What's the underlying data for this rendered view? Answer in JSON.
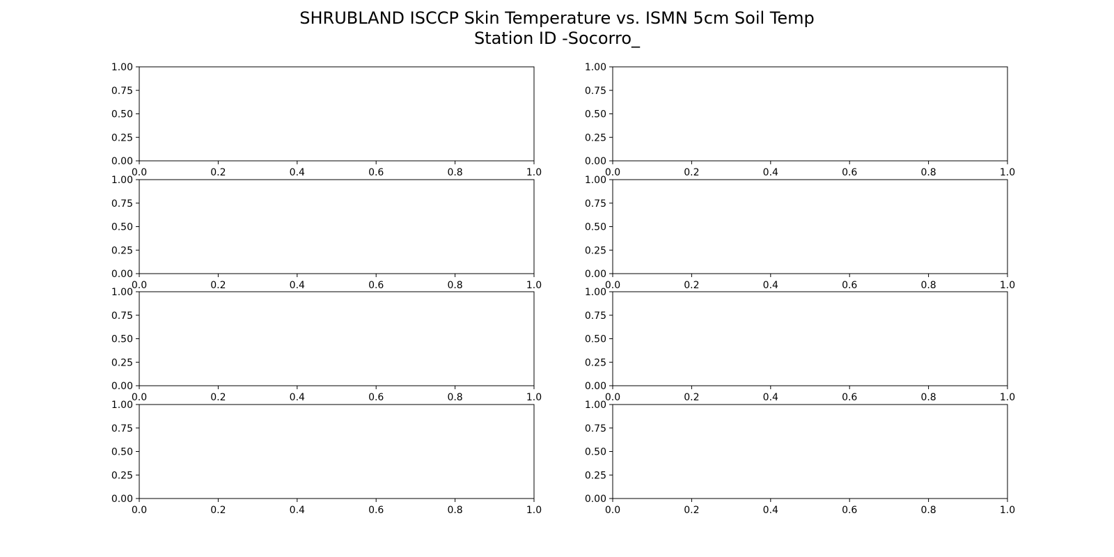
{
  "figure": {
    "title_line_1": "SHRUBLAND ISCCP Skin Temperature vs. ISMN 5cm Soil Temp",
    "title_line_2": "Station ID -Socorro_"
  },
  "chart_data": [
    {
      "type": "line",
      "title": "",
      "xlabel": "",
      "ylabel": "",
      "xlim": [
        0,
        1
      ],
      "ylim": [
        0,
        1
      ],
      "xticks": [
        "0.0",
        "0.2",
        "0.4",
        "0.6",
        "0.8",
        "1.0"
      ],
      "yticks": [
        "0.00",
        "0.25",
        "0.50",
        "0.75",
        "1.00"
      ],
      "series": [],
      "grid": false
    },
    {
      "type": "line",
      "title": "",
      "xlabel": "",
      "ylabel": "",
      "xlim": [
        0,
        1
      ],
      "ylim": [
        0,
        1
      ],
      "xticks": [
        "0.0",
        "0.2",
        "0.4",
        "0.6",
        "0.8",
        "1.0"
      ],
      "yticks": [
        "0.00",
        "0.25",
        "0.50",
        "0.75",
        "1.00"
      ],
      "series": [],
      "grid": false
    },
    {
      "type": "line",
      "title": "",
      "xlabel": "",
      "ylabel": "",
      "xlim": [
        0,
        1
      ],
      "ylim": [
        0,
        1
      ],
      "xticks": [
        "0.0",
        "0.2",
        "0.4",
        "0.6",
        "0.8",
        "1.0"
      ],
      "yticks": [
        "0.00",
        "0.25",
        "0.50",
        "0.75",
        "1.00"
      ],
      "series": [],
      "grid": false
    },
    {
      "type": "line",
      "title": "",
      "xlabel": "",
      "ylabel": "",
      "xlim": [
        0,
        1
      ],
      "ylim": [
        0,
        1
      ],
      "xticks": [
        "0.0",
        "0.2",
        "0.4",
        "0.6",
        "0.8",
        "1.0"
      ],
      "yticks": [
        "0.00",
        "0.25",
        "0.50",
        "0.75",
        "1.00"
      ],
      "series": [],
      "grid": false
    },
    {
      "type": "line",
      "title": "",
      "xlabel": "",
      "ylabel": "",
      "xlim": [
        0,
        1
      ],
      "ylim": [
        0,
        1
      ],
      "xticks": [
        "0.0",
        "0.2",
        "0.4",
        "0.6",
        "0.8",
        "1.0"
      ],
      "yticks": [
        "0.00",
        "0.25",
        "0.50",
        "0.75",
        "1.00"
      ],
      "series": [],
      "grid": false
    },
    {
      "type": "line",
      "title": "",
      "xlabel": "",
      "ylabel": "",
      "xlim": [
        0,
        1
      ],
      "ylim": [
        0,
        1
      ],
      "xticks": [
        "0.0",
        "0.2",
        "0.4",
        "0.6",
        "0.8",
        "1.0"
      ],
      "yticks": [
        "0.00",
        "0.25",
        "0.50",
        "0.75",
        "1.00"
      ],
      "series": [],
      "grid": false
    },
    {
      "type": "line",
      "title": "",
      "xlabel": "",
      "ylabel": "",
      "xlim": [
        0,
        1
      ],
      "ylim": [
        0,
        1
      ],
      "xticks": [
        "0.0",
        "0.2",
        "0.4",
        "0.6",
        "0.8",
        "1.0"
      ],
      "yticks": [
        "0.00",
        "0.25",
        "0.50",
        "0.75",
        "1.00"
      ],
      "series": [],
      "grid": false
    },
    {
      "type": "line",
      "title": "",
      "xlabel": "",
      "ylabel": "",
      "xlim": [
        0,
        1
      ],
      "ylim": [
        0,
        1
      ],
      "xticks": [
        "0.0",
        "0.2",
        "0.4",
        "0.6",
        "0.8",
        "1.0"
      ],
      "yticks": [
        "0.00",
        "0.25",
        "0.50",
        "0.75",
        "1.00"
      ],
      "series": [],
      "grid": false
    }
  ]
}
